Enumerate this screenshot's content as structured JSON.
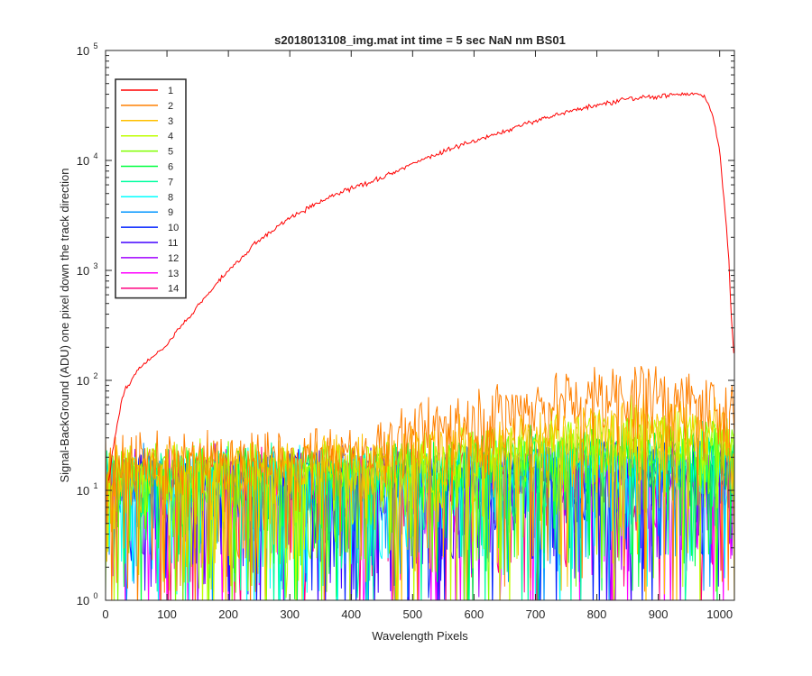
{
  "chart_data": {
    "type": "line",
    "title": "s2018013108_img.mat int time = 5 sec  NaN nm BS01",
    "xlabel": "Wavelength Pixels",
    "ylabel": "Signal-BackGround (ADU) one pixel down the track direction",
    "xlim": [
      0,
      1024
    ],
    "ylim": [
      1,
      100000
    ],
    "yscale": "log",
    "x_ticks": [
      0,
      100,
      200,
      300,
      400,
      500,
      600,
      700,
      800,
      900,
      1000
    ],
    "y_ticks": [
      {
        "value": 1,
        "base": "10",
        "exp": "0"
      },
      {
        "value": 10,
        "base": "10",
        "exp": "1"
      },
      {
        "value": 100,
        "base": "10",
        "exp": "2"
      },
      {
        "value": 1000,
        "base": "10",
        "exp": "3"
      },
      {
        "value": 10000,
        "base": "10",
        "exp": "4"
      },
      {
        "value": 100000,
        "base": "10",
        "exp": "5"
      }
    ],
    "grid": false,
    "legend_position": "top-left",
    "series": [
      {
        "name": "1",
        "color": "#ff0000",
        "kind": "signal",
        "x": [
          5,
          10,
          15,
          20,
          25,
          30,
          40,
          50,
          60,
          75,
          90,
          100,
          120,
          140,
          160,
          180,
          200,
          225,
          250,
          275,
          300,
          325,
          350,
          375,
          400,
          425,
          450,
          475,
          500,
          550,
          600,
          650,
          700,
          750,
          800,
          850,
          900,
          930,
          950,
          960,
          970,
          980,
          990,
          1000,
          1010,
          1015,
          1020,
          1024
        ],
        "values": [
          12,
          20,
          30,
          45,
          60,
          80,
          95,
          120,
          140,
          160,
          190,
          210,
          300,
          400,
          550,
          750,
          1000,
          1400,
          1900,
          2400,
          3000,
          3600,
          4200,
          4900,
          5600,
          6200,
          7000,
          8000,
          9500,
          12000,
          15000,
          18500,
          23000,
          27500,
          32000,
          36000,
          38500,
          39500,
          40000,
          40500,
          40000,
          35000,
          25000,
          12000,
          3000,
          1200,
          300,
          150
        ]
      },
      {
        "name": "2",
        "color": "#ff7f00",
        "kind": "noise",
        "base": [
          [
            0,
            18
          ],
          [
            200,
            19
          ],
          [
            400,
            22
          ],
          [
            550,
            40
          ],
          [
            650,
            55
          ],
          [
            700,
            62
          ],
          [
            800,
            75
          ],
          [
            870,
            80
          ],
          [
            920,
            70
          ],
          [
            1000,
            55
          ],
          [
            1024,
            50
          ]
        ]
      },
      {
        "name": "3",
        "color": "#ffc000",
        "kind": "noise",
        "base": [
          [
            0,
            15
          ],
          [
            400,
            18
          ],
          [
            600,
            26
          ],
          [
            800,
            40
          ],
          [
            900,
            42
          ],
          [
            1024,
            36
          ]
        ]
      },
      {
        "name": "4",
        "color": "#bfff00",
        "kind": "noise",
        "base": [
          [
            0,
            14
          ],
          [
            400,
            16
          ],
          [
            600,
            22
          ],
          [
            800,
            32
          ],
          [
            900,
            34
          ],
          [
            1024,
            30
          ]
        ]
      },
      {
        "name": "5",
        "color": "#80ff00",
        "kind": "noise",
        "base": [
          [
            0,
            14
          ],
          [
            500,
            16
          ],
          [
            800,
            26
          ],
          [
            1024,
            25
          ]
        ]
      },
      {
        "name": "6",
        "color": "#00ff40",
        "kind": "noise",
        "base": [
          [
            0,
            13
          ],
          [
            500,
            15
          ],
          [
            800,
            23
          ],
          [
            1024,
            22
          ]
        ]
      },
      {
        "name": "7",
        "color": "#00ffa0",
        "kind": "noise",
        "base": [
          [
            0,
            13
          ],
          [
            500,
            14
          ],
          [
            800,
            20
          ],
          [
            1024,
            19
          ]
        ]
      },
      {
        "name": "8",
        "color": "#00ffff",
        "kind": "noise",
        "base": [
          [
            0,
            13
          ],
          [
            500,
            14
          ],
          [
            800,
            18
          ],
          [
            1024,
            18
          ]
        ]
      },
      {
        "name": "9",
        "color": "#0095ff",
        "kind": "noise",
        "base": [
          [
            0,
            12
          ],
          [
            500,
            13
          ],
          [
            800,
            17
          ],
          [
            1024,
            16
          ]
        ]
      },
      {
        "name": "10",
        "color": "#0020ff",
        "kind": "noise",
        "base": [
          [
            0,
            12
          ],
          [
            500,
            13
          ],
          [
            800,
            16
          ],
          [
            1024,
            15
          ]
        ]
      },
      {
        "name": "11",
        "color": "#4000ff",
        "kind": "noise",
        "base": [
          [
            0,
            12
          ],
          [
            500,
            13
          ],
          [
            800,
            15
          ],
          [
            1024,
            15
          ]
        ]
      },
      {
        "name": "12",
        "color": "#a000ff",
        "kind": "noise",
        "base": [
          [
            0,
            12
          ],
          [
            500,
            12
          ],
          [
            800,
            14
          ],
          [
            1024,
            14
          ]
        ]
      },
      {
        "name": "13",
        "color": "#ff00ff",
        "kind": "noise",
        "base": [
          [
            0,
            12
          ],
          [
            500,
            12
          ],
          [
            800,
            14
          ],
          [
            1024,
            13
          ]
        ]
      },
      {
        "name": "14",
        "color": "#ff0080",
        "kind": "noise",
        "base": [
          [
            0,
            12
          ],
          [
            500,
            12
          ],
          [
            800,
            13
          ],
          [
            1024,
            13
          ]
        ]
      }
    ]
  }
}
